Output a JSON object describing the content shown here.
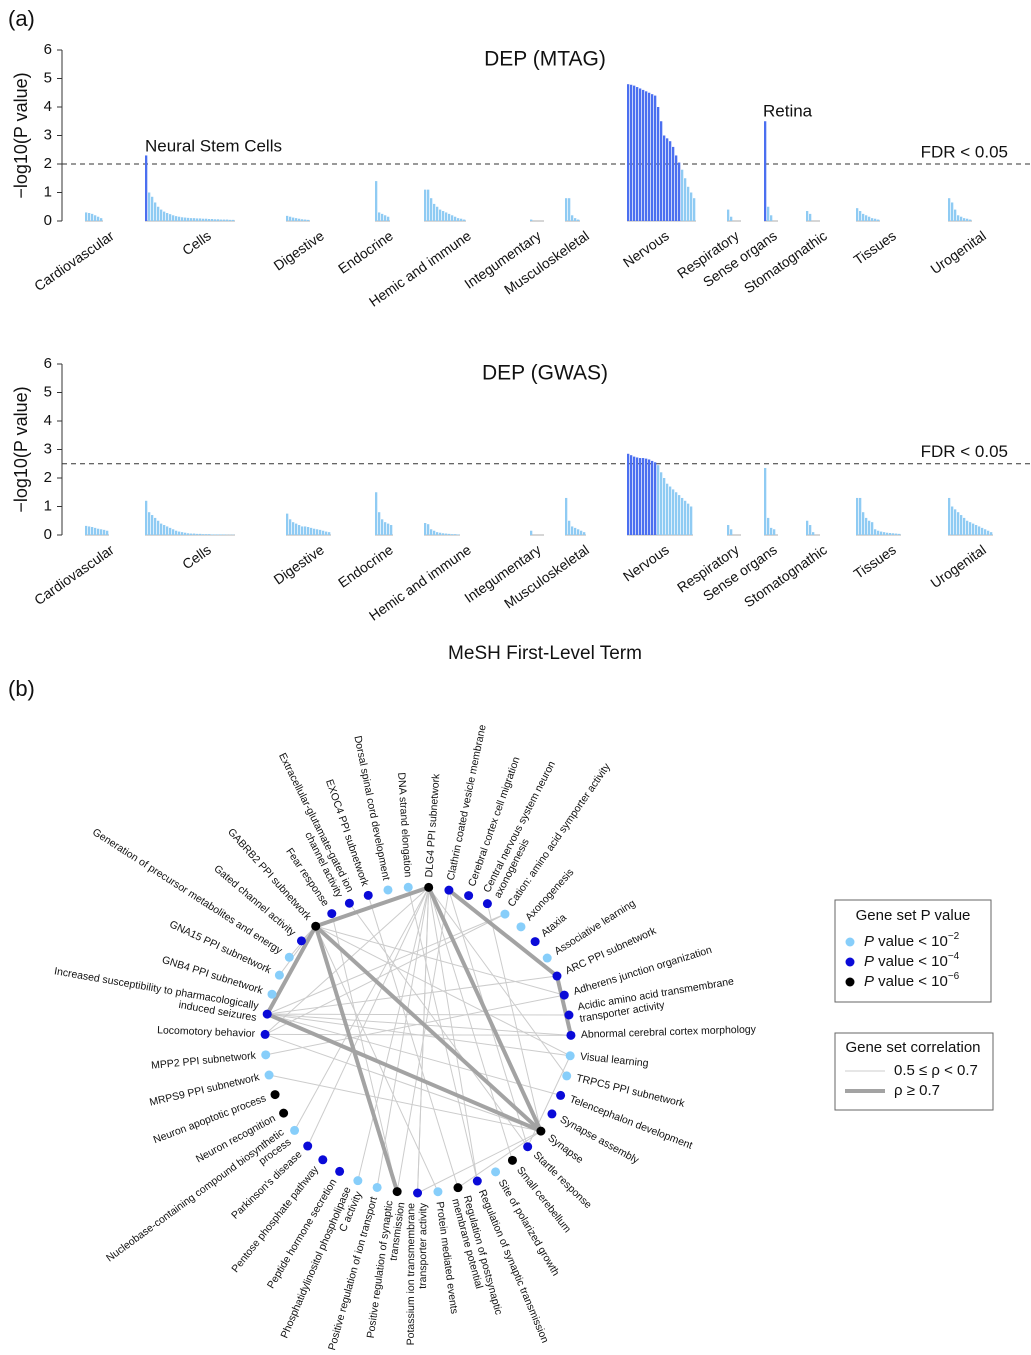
{
  "panels": [
    "(a)",
    "(b)"
  ],
  "chart_data": [
    {
      "type": "bar",
      "title": "DEP (MTAG)",
      "ylabel": "−log10(P value)",
      "categories": [
        "Cardiovascular",
        "Cells",
        "Digestive",
        "Endocrine",
        "Hemic and immune",
        "Integumentary",
        "Musculoskeletal",
        "Nervous",
        "Respiratory",
        "Sense organs",
        "Stomatognathic",
        "Tissues",
        "Urogenital"
      ],
      "values": [
        [
          0.3,
          0.28,
          0.25,
          0.2,
          0.15,
          0.1
        ],
        [
          2.3,
          1.0,
          0.85,
          0.65,
          0.5,
          0.4,
          0.33,
          0.28,
          0.24,
          0.2,
          0.17,
          0.15,
          0.13,
          0.12,
          0.11,
          0.1,
          0.1,
          0.09,
          0.09,
          0.08,
          0.08,
          0.07,
          0.07,
          0.06,
          0.06,
          0.05,
          0.05,
          0.05,
          0.04,
          0.04
        ],
        [
          0.18,
          0.15,
          0.12,
          0.1,
          0.08,
          0.06,
          0.05,
          0.04
        ],
        [
          1.4,
          0.3,
          0.25,
          0.2,
          0.15
        ],
        [
          1.1,
          1.1,
          0.8,
          0.6,
          0.5,
          0.4,
          0.35,
          0.3,
          0.25,
          0.2,
          0.15,
          0.1,
          0.08,
          0.05
        ],
        [
          0.05
        ],
        [
          0.8,
          0.8,
          0.2,
          0.1,
          0.05
        ],
        [
          4.8,
          4.78,
          4.75,
          4.7,
          4.65,
          4.6,
          4.55,
          4.5,
          4.45,
          4.4,
          4.0,
          3.5,
          3.0,
          2.9,
          2.8,
          2.6,
          2.3,
          2.05,
          1.8,
          1.5,
          1.2,
          1.0,
          0.8
        ],
        [
          0.4,
          0.15
        ],
        [
          3.5,
          0.5,
          0.2
        ],
        [
          0.35,
          0.25
        ],
        [
          0.45,
          0.35,
          0.25,
          0.2,
          0.15,
          0.1,
          0.08,
          0.05
        ],
        [
          0.8,
          0.65,
          0.4,
          0.2,
          0.15,
          0.1,
          0.08,
          0.05
        ]
      ],
      "color": "#8fcbf3",
      "highlight_color": "#4b6ff0",
      "fdr_line": 2,
      "fdr_label": "FDR < 0.05",
      "annotations": [
        "Neural Stem Cells",
        "Retina"
      ],
      "ylim": [
        0,
        6
      ],
      "yticks": [
        0,
        1,
        2,
        3,
        4,
        5,
        6
      ]
    },
    {
      "type": "bar",
      "title": "DEP (GWAS)",
      "ylabel": "−log10(P value)",
      "xlabel": "MeSH First-Level Term",
      "categories": [
        "Cardiovascular",
        "Cells",
        "Digestive",
        "Endocrine",
        "Hemic and immune",
        "Integumentary",
        "Musculoskeletal",
        "Nervous",
        "Respiratory",
        "Sense organs",
        "Stomatognathic",
        "Tissues",
        "Urogenital"
      ],
      "values": [
        [
          0.32,
          0.3,
          0.28,
          0.25,
          0.22,
          0.2,
          0.18,
          0.15
        ],
        [
          1.2,
          0.8,
          0.7,
          0.6,
          0.5,
          0.4,
          0.35,
          0.3,
          0.25,
          0.2,
          0.15,
          0.12,
          0.1,
          0.08,
          0.06,
          0.05,
          0.05,
          0.04,
          0.04,
          0.03,
          0.03,
          0.03,
          0.02,
          0.02,
          0.02,
          0.02,
          0.02,
          0.01,
          0.01,
          0.01
        ],
        [
          0.75,
          0.55,
          0.45,
          0.4,
          0.35,
          0.3,
          0.3,
          0.28,
          0.25,
          0.22,
          0.2,
          0.18,
          0.15,
          0.12,
          0.1
        ],
        [
          1.5,
          0.8,
          0.55,
          0.45,
          0.4,
          0.35
        ],
        [
          0.42,
          0.38,
          0.2,
          0.15,
          0.1,
          0.08,
          0.06,
          0.05,
          0.04,
          0.03,
          0.03,
          0.02
        ],
        [
          0.15
        ],
        [
          1.3,
          0.5,
          0.3,
          0.25,
          0.2,
          0.15,
          0.1
        ],
        [
          2.85,
          2.8,
          2.75,
          2.72,
          2.7,
          2.7,
          2.68,
          2.65,
          2.6,
          2.55,
          2.45,
          2.2,
          2.0,
          1.8,
          1.7,
          1.6,
          1.5,
          1.4,
          1.3,
          1.2,
          1.1,
          1.0
        ],
        [
          0.35,
          0.2
        ],
        [
          2.35,
          0.6,
          0.25,
          0.2
        ],
        [
          0.5,
          0.35,
          0.1
        ],
        [
          1.3,
          1.3,
          0.8,
          0.6,
          0.5,
          0.45,
          0.2,
          0.15,
          0.12,
          0.1,
          0.08,
          0.07,
          0.06,
          0.05,
          0.04
        ],
        [
          1.3,
          1.0,
          0.9,
          0.8,
          0.7,
          0.6,
          0.5,
          0.45,
          0.4,
          0.35,
          0.3,
          0.25,
          0.2,
          0.15,
          0.1
        ]
      ],
      "color": "#8fcbf3",
      "highlight_color": "#4b6ff0",
      "fdr_line": 2.5,
      "fdr_label": "FDR < 0.05",
      "ylim": [
        0,
        6
      ],
      "yticks": [
        0,
        1,
        2,
        3,
        4,
        5,
        6
      ]
    },
    {
      "type": "network",
      "nodes": [
        {
          "label": [
            "DLG4 PPI subnetwork"
          ],
          "group": 2
        },
        {
          "label": [
            "Clathrin coated vesicle membrane"
          ],
          "group": 1
        },
        {
          "label": [
            "Cerebral cortex cell migration"
          ],
          "group": 1
        },
        {
          "label": [
            "Central nervous system neuron",
            "axonogenesis"
          ],
          "group": 1
        },
        {
          "label": [
            "Cation: amino acid symporter activity"
          ],
          "group": 0
        },
        {
          "label": [
            "Axonogenesis"
          ],
          "group": 0
        },
        {
          "label": [
            "Ataxia"
          ],
          "group": 1
        },
        {
          "label": [
            "Associative learning"
          ],
          "group": 0
        },
        {
          "label": [
            "ARC PPI subnetwork"
          ],
          "group": 1
        },
        {
          "label": [
            "Adherens junction organization"
          ],
          "group": 1
        },
        {
          "label": [
            "Acidic amino acid transmembrane",
            "transporter activity"
          ],
          "group": 1
        },
        {
          "label": [
            "Abnormal cerebral cortex morphology"
          ],
          "group": 1
        },
        {
          "label": [
            "Visual learning"
          ],
          "group": 0
        },
        {
          "label": [
            "TRPC5 PPI subnetwork"
          ],
          "group": 0
        },
        {
          "label": [
            "Telencephalon development"
          ],
          "group": 1
        },
        {
          "label": [
            "Synapse assembly"
          ],
          "group": 1
        },
        {
          "label": [
            "Synapse"
          ],
          "group": 2
        },
        {
          "label": [
            "Startle response"
          ],
          "group": 1
        },
        {
          "label": [
            "Small cerebellum"
          ],
          "group": 2
        },
        {
          "label": [
            "Site of polarized growth"
          ],
          "group": 0
        },
        {
          "label": [
            "Regulation of synaptic transmission"
          ],
          "group": 1
        },
        {
          "label": [
            "Regulation of postsynaptic",
            "membrane potential"
          ],
          "group": 2
        },
        {
          "label": [
            "Protein mediated events"
          ],
          "group": 0
        },
        {
          "label": [
            "Potassium ion transmembrane",
            "transporter activity"
          ],
          "group": 1
        },
        {
          "label": [
            "Positive regulation of synaptic",
            "transmission"
          ],
          "group": 2
        },
        {
          "label": [
            "Positive regulation of ion transport"
          ],
          "group": 0
        },
        {
          "label": [
            "Phosphatidylinositol phospholipase",
            "C activity"
          ],
          "group": 0
        },
        {
          "label": [
            "Peptide hormone secretion"
          ],
          "group": 1
        },
        {
          "label": [
            "Pentose phosphate pathway"
          ],
          "group": 1
        },
        {
          "label": [
            "Parkinson's disease"
          ],
          "group": 1
        },
        {
          "label": [
            "Nucleobase-containing compound biosynthetic",
            "process"
          ],
          "group": 0
        },
        {
          "label": [
            "Neuron recognition"
          ],
          "group": 2
        },
        {
          "label": [
            "Neuron apoptotic process"
          ],
          "group": 2
        },
        {
          "label": [
            "MRPS9 PPI subnetwork"
          ],
          "group": 0
        },
        {
          "label": [
            "MPP2 PPI subnetwork"
          ],
          "group": 0
        },
        {
          "label": [
            "Locomotory behavior"
          ],
          "group": 1
        },
        {
          "label": [
            "Increased susceptibility to pharmacologically",
            "induced seizures"
          ],
          "group": 1
        },
        {
          "label": [
            "GNB4 PPI subnetwork"
          ],
          "group": 0
        },
        {
          "label": [
            "GNA15 PPI subnetwork"
          ],
          "group": 0
        },
        {
          "label": [
            "Generation of precursor metabolites and energy"
          ],
          "group": 0
        },
        {
          "label": [
            "Gated channel activity"
          ],
          "group": 1
        },
        {
          "label": [
            "GABRB2 PPI subnetwork"
          ],
          "group": 2
        },
        {
          "label": [
            "Fear response"
          ],
          "group": 1
        },
        {
          "label": [
            "Extracellular-glutamate-gated ion",
            "channel activity"
          ],
          "group": 1
        },
        {
          "label": [
            "EXOC4 PPI subnetwork"
          ],
          "group": 1
        },
        {
          "label": [
            "Dorsal spinal cord development"
          ],
          "group": 0
        },
        {
          "label": [
            "DNA strand elongation"
          ],
          "group": 0
        }
      ],
      "edges": [
        {
          "source": 0,
          "target": 23,
          "group": 0
        },
        {
          "source": 0,
          "target": 30,
          "group": 0
        },
        {
          "source": 0,
          "target": 35,
          "group": 0
        },
        {
          "source": 0,
          "target": 20,
          "group": 0
        },
        {
          "source": 0,
          "target": 13,
          "group": 0
        },
        {
          "source": 0,
          "target": 25,
          "group": 0
        },
        {
          "source": 1,
          "target": 17,
          "group": 0
        },
        {
          "source": 1,
          "target": 24,
          "group": 0
        },
        {
          "source": 4,
          "target": 35,
          "group": 0
        },
        {
          "source": 4,
          "target": 36,
          "group": 0
        },
        {
          "source": 8,
          "target": 36,
          "group": 0
        },
        {
          "source": 9,
          "target": 34,
          "group": 0
        },
        {
          "source": 10,
          "target": 36,
          "group": 0
        },
        {
          "source": 11,
          "target": 35,
          "group": 0
        },
        {
          "source": 12,
          "target": 17,
          "group": 0
        },
        {
          "source": 3,
          "target": 16,
          "group": 0
        },
        {
          "source": 41,
          "target": 12,
          "group": 0
        },
        {
          "source": 41,
          "target": 22,
          "group": 0
        },
        {
          "source": 42,
          "target": 24,
          "group": 0
        },
        {
          "source": 44,
          "target": 21,
          "group": 0
        },
        {
          "source": 46,
          "target": 20,
          "group": 0
        },
        {
          "source": 47,
          "target": 23,
          "group": 0
        },
        {
          "source": 43,
          "target": 17,
          "group": 0
        },
        {
          "source": 35,
          "target": 16,
          "group": 0
        },
        {
          "source": 33,
          "target": 16,
          "group": 0
        },
        {
          "source": 36,
          "target": 11,
          "group": 0
        },
        {
          "source": 38,
          "target": 41,
          "group": 0
        },
        {
          "source": 39,
          "target": 41,
          "group": 0
        },
        {
          "source": 40,
          "target": 41,
          "group": 0
        },
        {
          "source": 36,
          "target": 12,
          "group": 0
        },
        {
          "source": 29,
          "target": 0,
          "group": 0
        },
        {
          "source": 26,
          "target": 0,
          "group": 0
        },
        {
          "source": 0,
          "target": 18,
          "group": 0
        },
        {
          "source": 41,
          "target": 9,
          "group": 0
        },
        {
          "source": 36,
          "target": 14,
          "group": 0
        },
        {
          "source": 16,
          "target": 21,
          "group": 0
        },
        {
          "source": 16,
          "target": 23,
          "group": 0
        },
        {
          "source": 0,
          "target": 16,
          "group": 1
        },
        {
          "source": 0,
          "target": 41,
          "group": 1
        },
        {
          "source": 41,
          "target": 16,
          "group": 1
        },
        {
          "source": 41,
          "target": 24,
          "group": 1
        },
        {
          "source": 36,
          "target": 16,
          "group": 1
        },
        {
          "source": 36,
          "target": 41,
          "group": 1
        },
        {
          "source": 1,
          "target": 8,
          "group": 1
        },
        {
          "source": 8,
          "target": 11,
          "group": 1
        }
      ],
      "node_legend": {
        "title": "Gene set P value",
        "items": [
          {
            "italic": "P",
            "text": " value < 10",
            "sup": "−2",
            "color": "#87cefa"
          },
          {
            "italic": "P",
            "text": " value < 10",
            "sup": "−4",
            "color": "#0a0ad8"
          },
          {
            "italic": "P",
            "text": " value < 10",
            "sup": "−6",
            "color": "#000000"
          }
        ]
      },
      "edge_legend": {
        "title": "Gene set correlation",
        "items": [
          {
            "text": "0.5 ≤ ρ < 0.7",
            "color": "#cccccc",
            "width": 1
          },
          {
            "text": "ρ ≥ 0.7",
            "color": "#a3a3a3",
            "width": 4
          }
        ]
      }
    }
  ]
}
